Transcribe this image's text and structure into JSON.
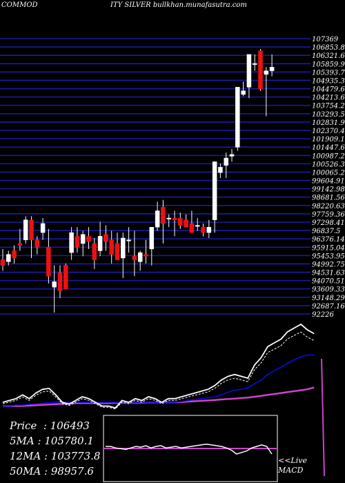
{
  "header": {
    "left": "COMMOD",
    "right": "ITY SILVER bullkhan.munafasutra.com"
  },
  "colors": {
    "grid": "#1a1aa8",
    "up": "#ffffff",
    "down": "#ee1111",
    "ma_fast": "#ffffff",
    "ma_mid": "#0a0ae6",
    "ma_slow": "#cc44cc"
  },
  "chart_data": {
    "type": "candlestick",
    "title": "COMMODITY SILVER",
    "y_tick_labels": [
      "107369",
      "106853.8",
      "106321.6",
      "105859.9",
      "105393.7",
      "104935.3",
      "104479.6",
      "104213.6",
      "103754.2",
      "103293.5",
      "102831.9",
      "102370.4",
      "101909.1",
      "101447.6",
      "100987.2",
      "100526.3",
      "100065.2",
      "99604.91",
      "99142.98",
      "98681.56",
      "98220.63",
      "97759.36",
      "97298.41",
      "96837.5",
      "96376.14",
      "95915.04",
      "95453.95",
      "94992.75",
      "94531.63",
      "94070.51",
      "93609.33",
      "93148.29",
      "92687.16",
      "92226"
    ],
    "candles": [
      {
        "o": 95220,
        "h": 95800,
        "l": 94600,
        "c": 94900
      },
      {
        "o": 95100,
        "h": 95700,
        "l": 94900,
        "c": 95500
      },
      {
        "o": 95700,
        "h": 96000,
        "l": 95000,
        "c": 95300
      },
      {
        "o": 96100,
        "h": 96900,
        "l": 95700,
        "c": 96000
      },
      {
        "o": 96300,
        "h": 97600,
        "l": 96100,
        "c": 97400
      },
      {
        "o": 97400,
        "h": 97600,
        "l": 95300,
        "c": 96300
      },
      {
        "o": 96300,
        "h": 96500,
        "l": 95500,
        "c": 95900
      },
      {
        "o": 96700,
        "h": 97500,
        "l": 96300,
        "c": 97200
      },
      {
        "o": 95900,
        "h": 96900,
        "l": 93900,
        "c": 94300
      },
      {
        "o": 93700,
        "h": 94900,
        "l": 92300,
        "c": 94000
      },
      {
        "o": 94500,
        "h": 94900,
        "l": 93100,
        "c": 93500
      },
      {
        "o": 94900,
        "h": 95000,
        "l": 93600,
        "c": 93600
      },
      {
        "o": 95600,
        "h": 97000,
        "l": 95200,
        "c": 96700
      },
      {
        "o": 96500,
        "h": 97000,
        "l": 95600,
        "c": 95900
      },
      {
        "o": 96100,
        "h": 96800,
        "l": 95400,
        "c": 96600
      },
      {
        "o": 96500,
        "h": 97000,
        "l": 95800,
        "c": 96200
      },
      {
        "o": 96100,
        "h": 96400,
        "l": 94700,
        "c": 95200
      },
      {
        "o": 95700,
        "h": 97300,
        "l": 95400,
        "c": 96500
      },
      {
        "o": 96600,
        "h": 97100,
        "l": 95700,
        "c": 96200
      },
      {
        "o": 96300,
        "h": 96800,
        "l": 95000,
        "c": 95500
      },
      {
        "o": 96100,
        "h": 96700,
        "l": 95300,
        "c": 95200
      },
      {
        "o": 95300,
        "h": 96700,
        "l": 94200,
        "c": 96400
      },
      {
        "o": 96300,
        "h": 97000,
        "l": 95600,
        "c": 96300
      },
      {
        "o": 95400,
        "h": 96800,
        "l": 94300,
        "c": 95200
      },
      {
        "o": 95100,
        "h": 95700,
        "l": 94600,
        "c": 95600
      },
      {
        "o": 95500,
        "h": 96300,
        "l": 95000,
        "c": 95400
      },
      {
        "o": 95800,
        "h": 97000,
        "l": 94900,
        "c": 97000
      },
      {
        "o": 97000,
        "h": 98400,
        "l": 96800,
        "c": 97900
      },
      {
        "o": 98100,
        "h": 98500,
        "l": 96100,
        "c": 97200
      },
      {
        "o": 97500,
        "h": 97700,
        "l": 97000,
        "c": 97500
      },
      {
        "o": 97500,
        "h": 97900,
        "l": 96500,
        "c": 97400
      },
      {
        "o": 97500,
        "h": 97800,
        "l": 96900,
        "c": 97100
      },
      {
        "o": 97400,
        "h": 97700,
        "l": 97100,
        "c": 97000
      },
      {
        "o": 97200,
        "h": 97900,
        "l": 96700,
        "c": 96700
      },
      {
        "o": 97100,
        "h": 97500,
        "l": 96800,
        "c": 97100
      },
      {
        "o": 97000,
        "h": 97200,
        "l": 96500,
        "c": 96700
      },
      {
        "o": 96700,
        "h": 97400,
        "l": 96400,
        "c": 97000
      },
      {
        "o": 97400,
        "h": 100600,
        "l": 96700,
        "c": 100600
      },
      {
        "o": 100000,
        "h": 100500,
        "l": 99700,
        "c": 100300
      },
      {
        "o": 100400,
        "h": 101100,
        "l": 99700,
        "c": 100800
      },
      {
        "o": 100900,
        "h": 101300,
        "l": 100600,
        "c": 101000
      },
      {
        "o": 101400,
        "h": 104700,
        "l": 101200,
        "c": 104700
      },
      {
        "o": 104300,
        "h": 105000,
        "l": 104200,
        "c": 104500
      },
      {
        "o": 104700,
        "h": 106500,
        "l": 104100,
        "c": 106500
      },
      {
        "o": 106000,
        "h": 106500,
        "l": 105600,
        "c": 106000
      },
      {
        "o": 106700,
        "h": 106800,
        "l": 104500,
        "c": 104600
      },
      {
        "o": 105400,
        "h": 105800,
        "l": 103100,
        "c": 105600
      },
      {
        "o": 105600,
        "h": 106500,
        "l": 105300,
        "c": 105800
      }
    ],
    "ma": {
      "fast": [
        100,
        110,
        120,
        140,
        120,
        150,
        170,
        175,
        140,
        100,
        90,
        110,
        130,
        120,
        100,
        80,
        80,
        70,
        110,
        100,
        120,
        110,
        130,
        120,
        100,
        120,
        120,
        130,
        140,
        150,
        160,
        170,
        190,
        220,
        240,
        250,
        240,
        230,
        300,
        340,
        400,
        420,
        440,
        480,
        500,
        520,
        490,
        470
      ],
      "mid": [
        80,
        80,
        85,
        85,
        90,
        92,
        95,
        98,
        100,
        102,
        100,
        100,
        100,
        100,
        100,
        100,
        100,
        100,
        100,
        98,
        100,
        100,
        100,
        100,
        98,
        100,
        100,
        104,
        110,
        115,
        120,
        124,
        130,
        140,
        155,
        165,
        170,
        178,
        200,
        220,
        250,
        270,
        290,
        310,
        330,
        345,
        355,
        355
      ],
      "slow": [
        80,
        80,
        80,
        81,
        82,
        84,
        86,
        88,
        90,
        92,
        94,
        95,
        96,
        96,
        96,
        96,
        96,
        97,
        98,
        98,
        98,
        98,
        99,
        99,
        99,
        100,
        100,
        101,
        104,
        106,
        108,
        110,
        112,
        115,
        118,
        120,
        123,
        125,
        130,
        135,
        140,
        145,
        150,
        155,
        160,
        165,
        170,
        180
      ]
    },
    "price": "106493",
    "stats": [
      {
        "label": "Price",
        "value": "106493"
      },
      {
        "label": "5MA",
        "value": "105780.1"
      },
      {
        "label": "12MA",
        "value": "103773.8"
      },
      {
        "label": "50MA",
        "value": "98957.6"
      }
    ],
    "macd_label": [
      "<<Live",
      "MACD"
    ],
    "macd": [
      30,
      30,
      28,
      27,
      26,
      28,
      30,
      29,
      31,
      28,
      30,
      31,
      28,
      29,
      30,
      28,
      29,
      30,
      31,
      32,
      33,
      32,
      31,
      30,
      28,
      25,
      20,
      22,
      24,
      28,
      30,
      32,
      30,
      20
    ]
  }
}
